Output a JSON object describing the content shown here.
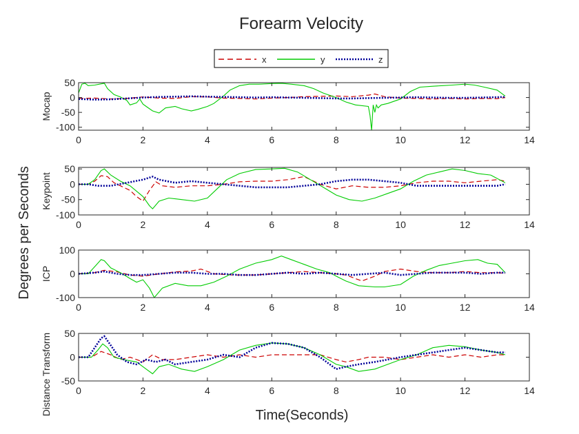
{
  "figure": {
    "title": "Forearm Velocity",
    "ylabel": "Degrees per Seconds",
    "xlabel": "Time(Seconds)"
  },
  "legend": {
    "placement": "top-center",
    "entries": [
      {
        "key": "x",
        "label": "x",
        "color": "#cc0000",
        "style": "dashed"
      },
      {
        "key": "y",
        "label": "y",
        "color": "#00cc00",
        "style": "solid"
      },
      {
        "key": "z",
        "label": "z",
        "color": "#000099",
        "style": "dotted"
      }
    ]
  },
  "chart_data": [
    {
      "type": "line",
      "ylabel": "Mocap",
      "xlim": [
        0,
        14
      ],
      "ylim": [
        -110,
        50
      ],
      "xticks": [
        0,
        2,
        4,
        6,
        8,
        10,
        12,
        14
      ],
      "yticks": [
        50,
        0,
        -50,
        -100
      ],
      "grid": false,
      "series": [
        {
          "name": "x",
          "x": [
            0,
            0.5,
            1,
            1.5,
            2,
            2.5,
            3,
            3.5,
            4,
            4.5,
            5,
            5.5,
            6,
            6.5,
            7,
            7.5,
            8,
            8.5,
            9,
            9.2,
            9.5,
            10,
            10.5,
            11,
            11.5,
            12,
            12.5,
            13,
            13.25
          ],
          "y": [
            -3,
            -2,
            -5,
            -3,
            2,
            -2,
            -3,
            3,
            2,
            -2,
            -3,
            -5,
            -2,
            0,
            3,
            4,
            5,
            3,
            8,
            12,
            3,
            -2,
            -3,
            -5,
            -3,
            -5,
            -3,
            -4,
            0
          ]
        },
        {
          "name": "y",
          "x": [
            0,
            0.1,
            0.2,
            0.3,
            0.5,
            0.7,
            0.8,
            0.9,
            1.1,
            1.3,
            1.5,
            1.6,
            1.8,
            1.9,
            2,
            2.1,
            2.3,
            2.5,
            2.7,
            3,
            3.2,
            3.5,
            3.7,
            4,
            4.2,
            4.5,
            4.7,
            5,
            5.3,
            5.6,
            6,
            6.3,
            6.6,
            7,
            7.3,
            7.6,
            8,
            8.3,
            8.6,
            9,
            9.05,
            9.1,
            9.15,
            9.2,
            9.25,
            9.3,
            9.4,
            9.6,
            10,
            10.3,
            10.6,
            11,
            11.3,
            11.6,
            12,
            12.3,
            12.6,
            13,
            13.25
          ],
          "y": [
            15,
            45,
            48,
            40,
            42,
            46,
            48,
            30,
            10,
            2,
            -10,
            -25,
            -18,
            -5,
            -22,
            -30,
            -45,
            -52,
            -35,
            -30,
            -38,
            -45,
            -40,
            -30,
            -20,
            5,
            25,
            40,
            45,
            45,
            47,
            48,
            45,
            40,
            30,
            15,
            0,
            -15,
            -25,
            -30,
            -60,
            -110,
            -25,
            -50,
            -25,
            -35,
            -25,
            -20,
            -5,
            20,
            35,
            38,
            40,
            42,
            45,
            42,
            35,
            25,
            5
          ]
        },
        {
          "name": "z",
          "x": [
            0,
            0.5,
            1,
            1.5,
            2,
            2.5,
            3,
            3.5,
            4,
            4.5,
            5,
            5.5,
            6,
            6.5,
            7,
            7.5,
            8,
            8.5,
            9,
            9.5,
            10,
            10.5,
            11,
            11.5,
            12,
            12.5,
            13,
            13.25
          ],
          "y": [
            -5,
            -7,
            -6,
            -3,
            0,
            2,
            3,
            4,
            3,
            2,
            1,
            0,
            1,
            0,
            -1,
            -2,
            -3,
            -3,
            -2,
            -1,
            0,
            1,
            0,
            -1,
            -1,
            0,
            1,
            2
          ]
        }
      ]
    },
    {
      "type": "line",
      "ylabel": "Keypoint",
      "xlim": [
        0,
        14
      ],
      "ylim": [
        -100,
        55
      ],
      "xticks": [
        0,
        2,
        4,
        6,
        8,
        10,
        12,
        14
      ],
      "yticks": [
        50,
        0,
        -50,
        -100
      ],
      "grid": false,
      "series": [
        {
          "name": "x",
          "x": [
            0,
            0.3,
            0.5,
            0.7,
            0.9,
            1.1,
            1.3,
            1.6,
            1.8,
            2,
            2.2,
            2.4,
            2.6,
            3,
            3.5,
            4,
            4.5,
            5,
            5.5,
            6,
            6.5,
            7,
            7.5,
            8,
            8.5,
            9,
            9.5,
            10,
            10.5,
            11,
            11.5,
            12,
            12.5,
            13,
            13.25
          ],
          "y": [
            0,
            0,
            10,
            28,
            25,
            5,
            -5,
            -20,
            -40,
            -55,
            -20,
            8,
            -5,
            -10,
            -5,
            -5,
            0,
            8,
            10,
            10,
            15,
            25,
            0,
            -15,
            -5,
            -10,
            -10,
            -5,
            5,
            10,
            10,
            5,
            10,
            15,
            10
          ]
        },
        {
          "name": "y",
          "x": [
            0,
            0.3,
            0.5,
            0.7,
            0.8,
            1,
            1.3,
            1.6,
            2,
            2.2,
            2.3,
            2.5,
            2.8,
            3.2,
            3.6,
            4,
            4.3,
            4.6,
            5,
            5.5,
            6,
            6.4,
            6.8,
            7.2,
            7.6,
            8,
            8.4,
            8.8,
            9.2,
            9.6,
            10,
            10.4,
            10.8,
            11.2,
            11.6,
            12,
            12.4,
            12.8,
            13.25
          ],
          "y": [
            0,
            0,
            15,
            45,
            50,
            30,
            10,
            -5,
            -40,
            -70,
            -80,
            -55,
            -45,
            -50,
            -55,
            -45,
            -15,
            15,
            35,
            48,
            50,
            52,
            40,
            15,
            -10,
            -35,
            -50,
            -55,
            -45,
            -30,
            -15,
            10,
            30,
            40,
            50,
            45,
            35,
            30,
            5
          ]
        },
        {
          "name": "z",
          "x": [
            0,
            0.3,
            0.6,
            1,
            1.5,
            2,
            2.3,
            2.5,
            3,
            3.5,
            4,
            4.5,
            5,
            5.5,
            6,
            6.5,
            7,
            7.5,
            8,
            8.5,
            9,
            9.5,
            10,
            10.5,
            11,
            11.5,
            12,
            12.5,
            13,
            13.25
          ],
          "y": [
            0,
            0,
            -5,
            -5,
            5,
            15,
            25,
            15,
            5,
            10,
            5,
            0,
            -5,
            -10,
            -10,
            -10,
            -5,
            0,
            10,
            15,
            15,
            10,
            5,
            -5,
            -5,
            -5,
            -5,
            -5,
            -5,
            0
          ]
        }
      ]
    },
    {
      "type": "line",
      "ylabel": "ICP",
      "xlim": [
        0,
        14
      ],
      "ylim": [
        -100,
        100
      ],
      "xticks": [
        0,
        2,
        4,
        6,
        8,
        10,
        12,
        14
      ],
      "yticks": [
        100,
        0,
        -100
      ],
      "grid": false,
      "series": [
        {
          "name": "x",
          "x": [
            0,
            0.5,
            0.8,
            1.2,
            1.6,
            2,
            2.5,
            3,
            3.5,
            3.8,
            4.2,
            4.8,
            5.5,
            6,
            6.5,
            7,
            7.5,
            8,
            8.3,
            8.8,
            9.2,
            9.5,
            10,
            10.5,
            11,
            11.5,
            12,
            12.5,
            13,
            13.25
          ],
          "y": [
            0,
            5,
            15,
            8,
            -5,
            -10,
            0,
            8,
            12,
            20,
            0,
            -5,
            -5,
            0,
            5,
            10,
            5,
            0,
            -5,
            -30,
            -10,
            10,
            20,
            10,
            5,
            5,
            10,
            5,
            5,
            2
          ]
        },
        {
          "name": "y",
          "x": [
            0,
            0.3,
            0.5,
            0.7,
            0.8,
            1,
            1.3,
            1.6,
            1.8,
            2,
            2.2,
            2.35,
            2.6,
            3,
            3.4,
            3.8,
            4.2,
            4.6,
            5,
            5.5,
            6,
            6.3,
            6.6,
            7,
            7.4,
            7.8,
            8,
            8.3,
            8.7,
            9.2,
            9.5,
            10,
            10.4,
            10.8,
            11.2,
            11.6,
            12,
            12.4,
            12.7,
            13,
            13.25
          ],
          "y": [
            0,
            0,
            30,
            60,
            55,
            25,
            5,
            -20,
            -35,
            -25,
            -60,
            -100,
            -60,
            -40,
            -50,
            -50,
            -35,
            -10,
            20,
            45,
            60,
            75,
            60,
            40,
            20,
            5,
            -10,
            -30,
            -50,
            -55,
            -55,
            -45,
            -10,
            15,
            35,
            45,
            55,
            60,
            45,
            40,
            5
          ]
        },
        {
          "name": "z",
          "x": [
            0,
            0.5,
            0.8,
            1.2,
            1.6,
            2,
            2.5,
            3,
            3.5,
            4,
            4.5,
            5,
            5.5,
            6,
            6.5,
            7,
            7.5,
            8,
            8.5,
            9,
            9.5,
            10,
            10.5,
            11,
            11.5,
            12,
            12.5,
            13,
            13.25
          ],
          "y": [
            0,
            5,
            10,
            0,
            -5,
            -5,
            0,
            5,
            5,
            0,
            0,
            -5,
            -5,
            0,
            5,
            0,
            5,
            0,
            -5,
            0,
            5,
            -5,
            0,
            5,
            5,
            5,
            0,
            5,
            5
          ]
        }
      ]
    },
    {
      "type": "line",
      "ylabel": "Distance Transform",
      "xlim": [
        0,
        14
      ],
      "ylim": [
        -50,
        50
      ],
      "xticks": [
        0,
        2,
        4,
        6,
        8,
        10,
        12,
        14
      ],
      "yticks": [
        50,
        0,
        -50
      ],
      "grid": false,
      "series": [
        {
          "name": "x",
          "x": [
            0,
            0.4,
            0.7,
            1,
            1.3,
            1.6,
            2,
            2.3,
            2.6,
            3,
            3.5,
            4,
            4.5,
            5,
            5.5,
            6,
            6.5,
            7,
            7.5,
            8,
            8.3,
            8.7,
            9,
            9.5,
            10,
            10.5,
            11,
            11.5,
            12,
            12.5,
            13,
            13.25
          ],
          "y": [
            0,
            0,
            12,
            5,
            -5,
            0,
            -10,
            5,
            -5,
            -5,
            0,
            5,
            0,
            5,
            0,
            5,
            5,
            5,
            5,
            -5,
            -10,
            -5,
            0,
            0,
            -5,
            0,
            5,
            0,
            5,
            0,
            5,
            5
          ]
        },
        {
          "name": "y",
          "x": [
            0,
            0.4,
            0.6,
            0.75,
            0.9,
            1.1,
            1.4,
            1.8,
            2.1,
            2.3,
            2.5,
            2.8,
            3.2,
            3.6,
            4,
            4.5,
            5,
            5.5,
            6,
            6.5,
            7,
            7.5,
            8,
            8.3,
            8.7,
            9.2,
            9.6,
            10,
            10.5,
            11,
            11.5,
            12,
            12.5,
            13,
            13.25
          ],
          "y": [
            0,
            0,
            15,
            28,
            20,
            0,
            -5,
            -10,
            -25,
            -35,
            -20,
            -15,
            -25,
            -30,
            -20,
            -5,
            15,
            25,
            30,
            28,
            20,
            5,
            -15,
            -20,
            -30,
            -25,
            -15,
            -5,
            5,
            20,
            25,
            22,
            15,
            10,
            5
          ]
        },
        {
          "name": "z",
          "x": [
            0,
            0.3,
            0.5,
            0.7,
            0.8,
            1,
            1.2,
            1.5,
            1.8,
            2.1,
            2.4,
            2.7,
            3,
            3.5,
            4,
            4.5,
            5,
            5.5,
            6,
            6.5,
            7,
            7.5,
            8,
            8.3,
            8.7,
            9.2,
            9.6,
            10,
            10.5,
            11,
            11.5,
            12,
            12.5,
            13,
            13.25
          ],
          "y": [
            0,
            0,
            20,
            40,
            44,
            25,
            5,
            -10,
            -15,
            -5,
            -10,
            -5,
            -15,
            -10,
            -5,
            5,
            0,
            20,
            30,
            28,
            20,
            0,
            -25,
            -20,
            -15,
            -10,
            -5,
            0,
            5,
            10,
            15,
            20,
            15,
            10,
            10
          ]
        }
      ]
    }
  ]
}
